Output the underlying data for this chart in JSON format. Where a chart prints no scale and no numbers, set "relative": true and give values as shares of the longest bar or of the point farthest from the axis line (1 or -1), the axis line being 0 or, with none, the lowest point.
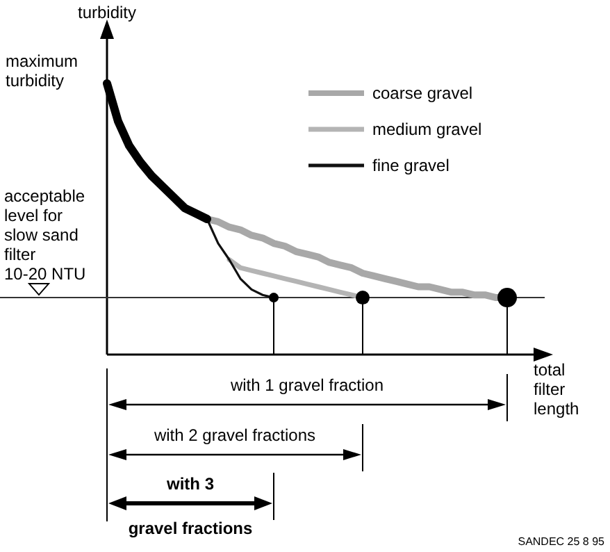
{
  "chart_data": {
    "type": "line",
    "relative": true,
    "xlabel": "total filter length",
    "ylabel": "turbidity",
    "legend": "top right",
    "categories": [
      null,
      null,
      null,
      null,
      null,
      null,
      null,
      null,
      null,
      null,
      null,
      null,
      null,
      null,
      null,
      null,
      null,
      null,
      null,
      null,
      null,
      null,
      null,
      null,
      null,
      null,
      null,
      null,
      null,
      null,
      null,
      null,
      null,
      null,
      null,
      null,
      null,
      null,
      null
    ],
    "series": [
      {
        "name": "coarse gravel",
        "color": "#a8a8a8",
        "values": [
          null,
          null,
          null,
          null,
          null,
          null,
          null,
          null,
          null,
          0.5,
          0.49,
          0.47,
          0.46,
          0.44,
          0.43,
          0.41,
          0.4,
          0.38,
          0.37,
          0.36,
          0.34,
          0.33,
          0.32,
          0.3,
          0.29,
          0.28,
          0.27,
          0.26,
          0.25,
          0.25,
          0.24,
          0.23,
          0.23,
          0.22,
          0.22,
          0.21,
          0.21,
          null,
          null
        ]
      },
      {
        "name": "medium gravel",
        "color": "#b4b4b4",
        "values": [
          null,
          null,
          null,
          null,
          null,
          null,
          null,
          null,
          null,
          null,
          null,
          0.35,
          0.32,
          0.31,
          0.3,
          0.29,
          0.28,
          0.27,
          0.26,
          0.25,
          0.24,
          0.23,
          0.22,
          0.21,
          null,
          null,
          null,
          null,
          null,
          null,
          null,
          null,
          null,
          null,
          null,
          null,
          null,
          null,
          null
        ]
      },
      {
        "name": "fine gravel",
        "color": "#111111",
        "values": [
          null,
          null,
          null,
          null,
          null,
          null,
          null,
          null,
          null,
          0.5,
          0.41,
          0.35,
          0.28,
          0.24,
          0.22,
          0.21,
          null,
          null,
          null,
          null,
          null,
          null,
          null,
          null,
          null,
          null,
          null,
          null,
          null,
          null,
          null,
          null,
          null,
          null,
          null,
          null,
          null,
          null,
          null
        ]
      },
      {
        "color": "#000000",
        "values": [
          1.0,
          0.86,
          0.77,
          0.71,
          0.66,
          0.62,
          0.58,
          0.54,
          0.52,
          0.5,
          null,
          null,
          null,
          null,
          null,
          null,
          null,
          null,
          null,
          null,
          null,
          null,
          null,
          null,
          null,
          null,
          null,
          null,
          null,
          null,
          null,
          null,
          null,
          null,
          null,
          null,
          null,
          null,
          null
        ]
      }
    ],
    "ref_lines": [
      {
        "axis": "y",
        "value": 0.21,
        "label": "acceptable level for slow sand filter 10-20 NTU",
        "color": "#333333"
      }
    ],
    "annotations": [
      "with 1 gravel fraction",
      "with 2 gravel fractions",
      "with 3 gravel fractions",
      "maximum turbidity",
      "SANDEC 25 8 95"
    ]
  }
}
